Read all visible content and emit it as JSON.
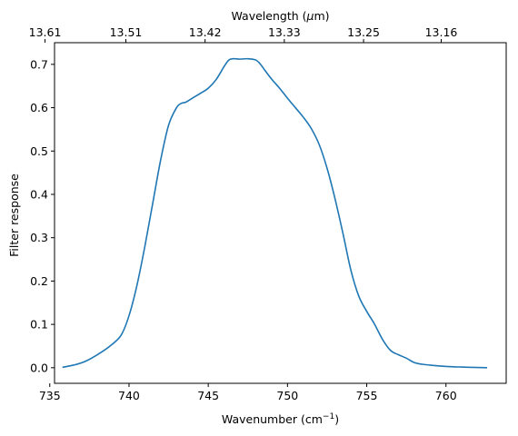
{
  "chart_data": {
    "type": "line",
    "xlabel": "Wavenumber (cm",
    "xlabel_sup": "−1",
    "xlabel_end": ")",
    "ylabel": "Filter response",
    "top_xlabel": "Wavelength (",
    "top_xlabel_mu": "μ",
    "top_xlabel_end": "m)",
    "xlim": [
      735.3,
      763.8
    ],
    "ylim": [
      -0.036,
      0.75
    ],
    "x_ticks": [
      {
        "value": 735,
        "label": "735"
      },
      {
        "value": 740,
        "label": "740"
      },
      {
        "value": 745,
        "label": "745"
      },
      {
        "value": 750,
        "label": "750"
      },
      {
        "value": 755,
        "label": "755"
      },
      {
        "value": 760,
        "label": "760"
      }
    ],
    "y_ticks": [
      {
        "value": 0.0,
        "label": "0.0"
      },
      {
        "value": 0.1,
        "label": "0.1"
      },
      {
        "value": 0.2,
        "label": "0.2"
      },
      {
        "value": 0.3,
        "label": "0.3"
      },
      {
        "value": 0.4,
        "label": "0.4"
      },
      {
        "value": 0.5,
        "label": "0.5"
      },
      {
        "value": 0.6,
        "label": "0.6"
      },
      {
        "value": 0.7,
        "label": "0.7"
      }
    ],
    "top_ticks": [
      {
        "value": 734.7,
        "label": "13.61"
      },
      {
        "value": 739.8,
        "label": "13.51"
      },
      {
        "value": 744.8,
        "label": "13.42"
      },
      {
        "value": 749.8,
        "label": "13.33"
      },
      {
        "value": 754.8,
        "label": "13.25"
      },
      {
        "value": 759.7,
        "label": "13.16"
      }
    ],
    "series": [
      {
        "color": "#1f77b4",
        "x": [
          735.8,
          736.5,
          737.2,
          738.0,
          738.8,
          739.5,
          740.0,
          740.5,
          741.0,
          741.5,
          742.0,
          742.5,
          743.0,
          743.3,
          743.6,
          744.0,
          744.5,
          745.0,
          745.5,
          746.0,
          746.3,
          746.6,
          747.0,
          747.5,
          748.0,
          748.3,
          748.6,
          749.0,
          749.5,
          750.0,
          750.5,
          751.0,
          751.5,
          752.0,
          752.5,
          753.0,
          753.5,
          754.0,
          754.5,
          755.0,
          755.5,
          756.0,
          756.5,
          757.0,
          757.5,
          758.0,
          758.5,
          759.0,
          760.0,
          761.0,
          762.0,
          762.6
        ],
        "y": [
          0.001,
          0.006,
          0.014,
          0.03,
          0.05,
          0.075,
          0.12,
          0.19,
          0.28,
          0.38,
          0.48,
          0.56,
          0.6,
          0.61,
          0.613,
          0.622,
          0.633,
          0.645,
          0.665,
          0.695,
          0.71,
          0.713,
          0.712,
          0.713,
          0.71,
          0.7,
          0.685,
          0.666,
          0.645,
          0.622,
          0.6,
          0.578,
          0.552,
          0.515,
          0.46,
          0.39,
          0.31,
          0.225,
          0.165,
          0.13,
          0.1,
          0.065,
          0.04,
          0.03,
          0.022,
          0.012,
          0.008,
          0.006,
          0.003,
          0.0015,
          0.0005,
          0.0
        ]
      }
    ],
    "grid": false,
    "colors": {
      "line": "#1f77b4",
      "axes": "#000000",
      "background": "#ffffff"
    }
  }
}
